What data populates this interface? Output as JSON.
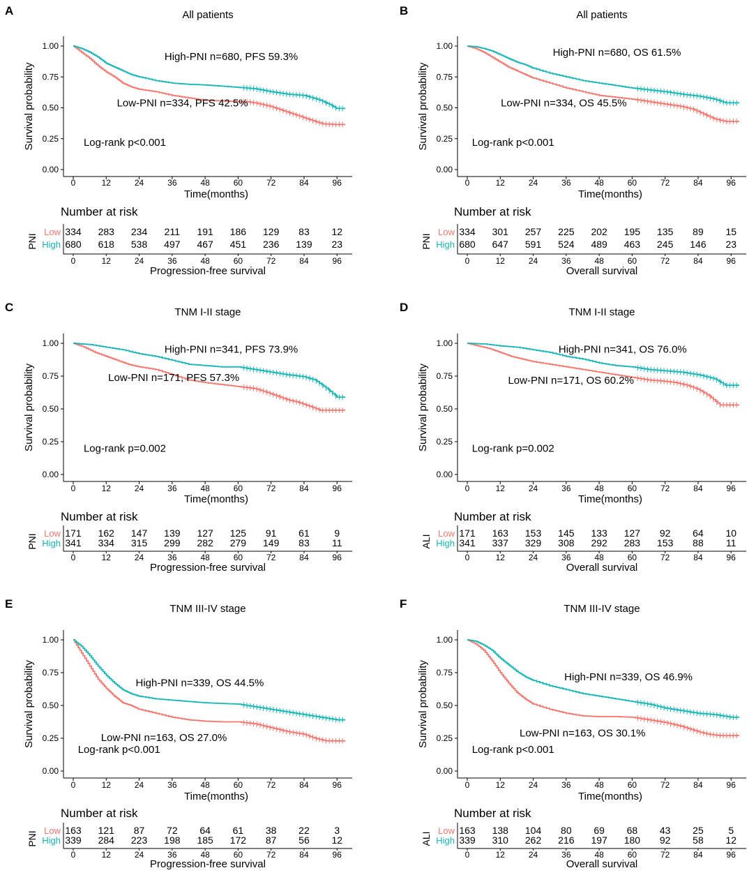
{
  "colors": {
    "low": "#F8766D",
    "high": "#17B6B8",
    "axis": "#000000"
  },
  "shared": {
    "ylabel": "Survival probability",
    "xlabel": "Time(months)",
    "y_ticks": [
      "0.00",
      "0.25",
      "0.50",
      "0.75",
      "1.00"
    ],
    "x_ticks": [
      "0",
      "12",
      "24",
      "36",
      "48",
      "60",
      "72",
      "84",
      "96"
    ],
    "risk_title": "Number at risk",
    "low_label": "Low",
    "high_label": "High"
  },
  "chart_data": [
    {
      "type": "line",
      "panel": "A",
      "title": "All patients",
      "xlabel": "Time(months)",
      "ylabel": "Survival probability",
      "xlim": [
        0,
        100
      ],
      "ylim": [
        0,
        1
      ],
      "series": [
        {
          "name": "Low-PNI",
          "x": [
            0,
            3,
            6,
            9,
            12,
            15,
            18,
            21,
            24,
            30,
            36,
            42,
            48,
            54,
            60,
            64,
            66,
            72,
            76,
            80,
            84,
            88,
            91,
            95,
            99
          ],
          "y": [
            1.0,
            0.95,
            0.9,
            0.84,
            0.79,
            0.75,
            0.7,
            0.67,
            0.65,
            0.63,
            0.6,
            0.58,
            0.56,
            0.556,
            0.55,
            0.548,
            0.54,
            0.51,
            0.48,
            0.45,
            0.42,
            0.39,
            0.37,
            0.365,
            0.365
          ]
        },
        {
          "name": "High-PNI",
          "x": [
            0,
            3,
            6,
            9,
            12,
            15,
            18,
            21,
            24,
            30,
            36,
            42,
            48,
            54,
            60,
            66,
            72,
            78,
            84,
            90,
            94,
            96,
            99
          ],
          "y": [
            1.0,
            0.98,
            0.95,
            0.91,
            0.86,
            0.83,
            0.8,
            0.77,
            0.75,
            0.72,
            0.7,
            0.69,
            0.685,
            0.675,
            0.665,
            0.655,
            0.63,
            0.61,
            0.6,
            0.56,
            0.52,
            0.495,
            0.495
          ]
        }
      ],
      "annotations": {
        "high": "High-PNI n=680, PFS 59.3%",
        "low": "Low-PNI n=334, PFS 42.5%",
        "logrank": "Log-rank p<0.001"
      },
      "risk_table": {
        "strata_label": "PNI",
        "low": [
          "334",
          "283",
          "234",
          "211",
          "191",
          "186",
          "129",
          "83",
          "12"
        ],
        "high": [
          "680",
          "618",
          "538",
          "497",
          "467",
          "451",
          "236",
          "139",
          "23"
        ],
        "caption": "Progression-free survival"
      }
    },
    {
      "type": "line",
      "panel": "B",
      "title": "All patients",
      "xlabel": "Time(months)",
      "ylabel": "Survival probability",
      "xlim": [
        0,
        100
      ],
      "ylim": [
        0,
        1
      ],
      "series": [
        {
          "name": "Low-PNI",
          "x": [
            0,
            3,
            6,
            9,
            12,
            15,
            18,
            21,
            24,
            30,
            36,
            42,
            48,
            54,
            60,
            66,
            72,
            78,
            82,
            86,
            90,
            94,
            99
          ],
          "y": [
            1.0,
            0.98,
            0.95,
            0.91,
            0.87,
            0.83,
            0.8,
            0.77,
            0.74,
            0.7,
            0.66,
            0.63,
            0.6,
            0.585,
            0.57,
            0.55,
            0.53,
            0.51,
            0.49,
            0.45,
            0.41,
            0.39,
            0.39
          ]
        },
        {
          "name": "High-PNI",
          "x": [
            0,
            3,
            6,
            9,
            12,
            15,
            18,
            21,
            24,
            30,
            36,
            42,
            48,
            54,
            60,
            66,
            72,
            78,
            84,
            90,
            94,
            99
          ],
          "y": [
            1.0,
            0.995,
            0.98,
            0.96,
            0.93,
            0.9,
            0.87,
            0.85,
            0.82,
            0.78,
            0.75,
            0.72,
            0.7,
            0.68,
            0.66,
            0.645,
            0.63,
            0.61,
            0.595,
            0.57,
            0.54,
            0.54
          ]
        }
      ],
      "annotations": {
        "high": "High-PNI n=680, OS 61.5%",
        "low": "Low-PNI n=334, OS 45.5%",
        "logrank": "Log-rank p<0.001"
      },
      "risk_table": {
        "strata_label": "PNI",
        "low": [
          "334",
          "301",
          "257",
          "225",
          "202",
          "195",
          "135",
          "89",
          "15"
        ],
        "high": [
          "680",
          "647",
          "591",
          "524",
          "489",
          "463",
          "245",
          "146",
          "23"
        ],
        "caption": "Overall survival"
      }
    },
    {
      "type": "line",
      "panel": "C",
      "title": "TNM I-II stage",
      "xlabel": "Time(months)",
      "ylabel": "Survival probability",
      "xlim": [
        0,
        100
      ],
      "ylim": [
        0,
        1
      ],
      "series": [
        {
          "name": "Low-PNI",
          "x": [
            0,
            4,
            8,
            12,
            16,
            20,
            24,
            30,
            36,
            42,
            48,
            54,
            60,
            66,
            70,
            74,
            78,
            82,
            86,
            90,
            99
          ],
          "y": [
            1.0,
            0.97,
            0.93,
            0.9,
            0.87,
            0.84,
            0.82,
            0.8,
            0.76,
            0.72,
            0.7,
            0.685,
            0.67,
            0.655,
            0.63,
            0.6,
            0.57,
            0.55,
            0.52,
            0.49,
            0.49
          ]
        },
        {
          "name": "High-PNI",
          "x": [
            0,
            6,
            12,
            18,
            24,
            30,
            36,
            42,
            48,
            54,
            60,
            66,
            72,
            78,
            84,
            88,
            92,
            96,
            99
          ],
          "y": [
            1.0,
            0.99,
            0.97,
            0.95,
            0.92,
            0.9,
            0.87,
            0.84,
            0.83,
            0.82,
            0.82,
            0.8,
            0.78,
            0.76,
            0.745,
            0.72,
            0.66,
            0.59,
            0.59
          ]
        }
      ],
      "annotations": {
        "high": "High-PNI n=341, PFS 73.9%",
        "low": "Low-PNI n=171, PFS 57.3%",
        "logrank": "Log-rank p=0.002"
      },
      "risk_table": {
        "strata_label": "PNI",
        "low": [
          "171",
          "162",
          "147",
          "139",
          "127",
          "125",
          "91",
          "61",
          "9"
        ],
        "high": [
          "341",
          "334",
          "315",
          "299",
          "282",
          "279",
          "149",
          "83",
          "11"
        ],
        "caption": "Progression-free survival"
      }
    },
    {
      "type": "line",
      "panel": "D",
      "title": "TNM I-II stage",
      "xlabel": "Time(months)",
      "ylabel": "Survival probability",
      "xlim": [
        0,
        100
      ],
      "ylim": [
        0,
        1
      ],
      "series": [
        {
          "name": "Low-PNI",
          "x": [
            0,
            4,
            8,
            12,
            16,
            20,
            24,
            30,
            36,
            42,
            48,
            54,
            60,
            66,
            72,
            76,
            80,
            84,
            88,
            92,
            99
          ],
          "y": [
            1.0,
            0.98,
            0.96,
            0.93,
            0.9,
            0.88,
            0.86,
            0.84,
            0.82,
            0.8,
            0.78,
            0.76,
            0.74,
            0.72,
            0.71,
            0.7,
            0.68,
            0.65,
            0.6,
            0.53,
            0.53
          ]
        },
        {
          "name": "High-PNI",
          "x": [
            0,
            6,
            12,
            18,
            24,
            30,
            36,
            42,
            48,
            54,
            60,
            66,
            72,
            78,
            84,
            90,
            94,
            99
          ],
          "y": [
            1.0,
            0.995,
            0.98,
            0.97,
            0.95,
            0.93,
            0.9,
            0.88,
            0.85,
            0.83,
            0.82,
            0.8,
            0.79,
            0.78,
            0.76,
            0.73,
            0.68,
            0.68
          ]
        }
      ],
      "annotations": {
        "high": "High-PNI n=341, OS 76.0%",
        "low": "Low-PNI n=171, OS 60.2%",
        "logrank": "Log-rank p=0.002"
      },
      "risk_table": {
        "strata_label": "ALI",
        "low": [
          "171",
          "163",
          "153",
          "145",
          "133",
          "127",
          "92",
          "64",
          "10"
        ],
        "high": [
          "341",
          "337",
          "329",
          "308",
          "292",
          "283",
          "153",
          "88",
          "11"
        ],
        "caption": "Overall survival"
      }
    },
    {
      "type": "line",
      "panel": "E",
      "title": "TNM III-IV stage",
      "xlabel": "Time(months)",
      "ylabel": "Survival probability",
      "xlim": [
        0,
        100
      ],
      "ylim": [
        0,
        1
      ],
      "series": [
        {
          "name": "Low-PNI",
          "x": [
            0,
            3,
            6,
            9,
            12,
            15,
            18,
            21,
            24,
            30,
            36,
            42,
            48,
            54,
            60,
            66,
            72,
            78,
            84,
            88,
            92,
            99
          ],
          "y": [
            1.0,
            0.9,
            0.8,
            0.7,
            0.63,
            0.57,
            0.52,
            0.5,
            0.47,
            0.44,
            0.41,
            0.39,
            0.38,
            0.375,
            0.375,
            0.36,
            0.33,
            0.3,
            0.28,
            0.25,
            0.23,
            0.23
          ]
        },
        {
          "name": "High-PNI",
          "x": [
            0,
            3,
            6,
            9,
            12,
            15,
            18,
            21,
            24,
            30,
            36,
            42,
            48,
            54,
            60,
            66,
            72,
            78,
            84,
            90,
            96,
            99
          ],
          "y": [
            1.0,
            0.95,
            0.88,
            0.8,
            0.73,
            0.67,
            0.62,
            0.59,
            0.57,
            0.55,
            0.54,
            0.53,
            0.52,
            0.515,
            0.51,
            0.49,
            0.47,
            0.45,
            0.43,
            0.41,
            0.39,
            0.39
          ]
        }
      ],
      "annotations": {
        "high": "High-PNI n=339, OS 44.5%",
        "low": "Low-PNI n=163, OS 27.0%",
        "logrank": "Log-rank p<0.001"
      },
      "risk_table": {
        "strata_label": "PNI",
        "low": [
          "163",
          "121",
          "87",
          "72",
          "64",
          "61",
          "38",
          "22",
          "3"
        ],
        "high": [
          "339",
          "284",
          "223",
          "198",
          "185",
          "172",
          "87",
          "56",
          "12"
        ],
        "caption": "Progression-free survival"
      }
    },
    {
      "type": "line",
      "panel": "F",
      "title": "TNM III-IV stage",
      "xlabel": "Time(months)",
      "ylabel": "Survival probability",
      "xlim": [
        0,
        100
      ],
      "ylim": [
        0,
        1
      ],
      "series": [
        {
          "name": "Low-PNI",
          "x": [
            0,
            3,
            6,
            9,
            12,
            15,
            18,
            21,
            24,
            30,
            36,
            42,
            48,
            54,
            60,
            66,
            72,
            78,
            84,
            88,
            92,
            99
          ],
          "y": [
            1.0,
            0.97,
            0.92,
            0.84,
            0.75,
            0.67,
            0.6,
            0.55,
            0.51,
            0.47,
            0.44,
            0.42,
            0.415,
            0.415,
            0.41,
            0.39,
            0.37,
            0.34,
            0.3,
            0.28,
            0.27,
            0.27
          ]
        },
        {
          "name": "High-PNI",
          "x": [
            0,
            3,
            6,
            9,
            12,
            15,
            18,
            21,
            24,
            30,
            36,
            42,
            48,
            54,
            60,
            66,
            72,
            78,
            84,
            90,
            96,
            99
          ],
          "y": [
            1.0,
            0.99,
            0.96,
            0.92,
            0.86,
            0.81,
            0.76,
            0.72,
            0.69,
            0.65,
            0.62,
            0.59,
            0.57,
            0.55,
            0.53,
            0.51,
            0.48,
            0.46,
            0.44,
            0.43,
            0.41,
            0.41
          ]
        }
      ],
      "annotations": {
        "high": "High-PNI n=339, OS 46.9%",
        "low": "Low-PNI n=163, OS 30.1%",
        "logrank": "Log-rank p<0.001"
      },
      "risk_table": {
        "strata_label": "ALI",
        "low": [
          "163",
          "138",
          "104",
          "80",
          "69",
          "68",
          "43",
          "25",
          "5"
        ],
        "high": [
          "339",
          "310",
          "262",
          "216",
          "197",
          "180",
          "92",
          "58",
          "12"
        ],
        "caption": "Overall survival"
      }
    }
  ]
}
